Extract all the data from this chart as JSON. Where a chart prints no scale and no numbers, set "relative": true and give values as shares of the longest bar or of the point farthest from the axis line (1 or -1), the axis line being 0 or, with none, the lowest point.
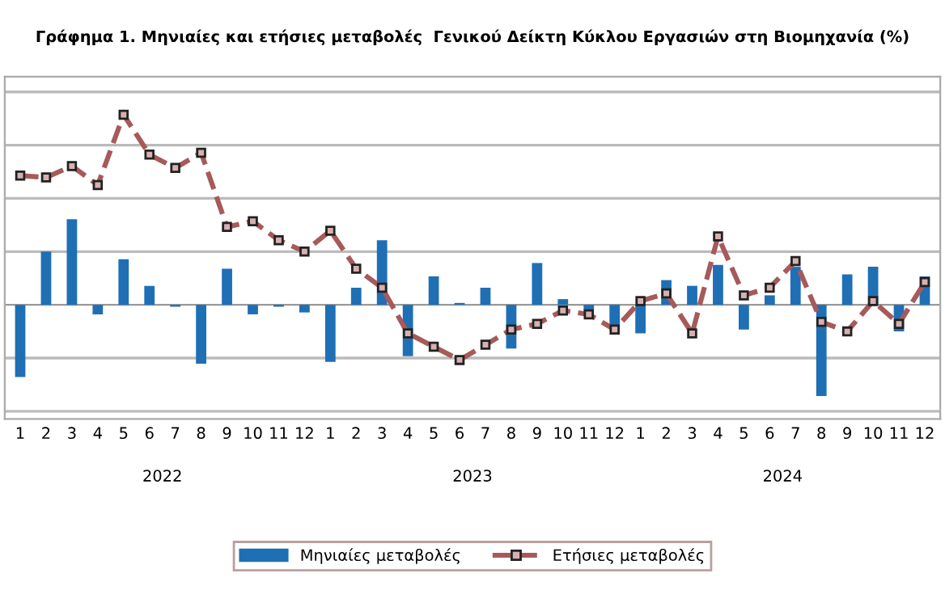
{
  "chart_data": {
    "type": "bar",
    "title": "Γράφημα 1. Μηνιαίες και ετήσιες μεταβολές  Γενικού Δείκτη Κύκλου Εργασιών στη Βιομηχανία (%)",
    "categories": [
      "1",
      "2",
      "3",
      "4",
      "5",
      "6",
      "7",
      "8",
      "9",
      "10",
      "11",
      "12",
      "1",
      "2",
      "3",
      "4",
      "5",
      "6",
      "7",
      "8",
      "9",
      "10",
      "11",
      "12",
      "1",
      "2",
      "3",
      "4",
      "5",
      "6",
      "7",
      "8",
      "9",
      "10",
      "11",
      "12"
    ],
    "relative": true,
    "grid": "y",
    "legend": "bottom",
    "series": [
      {
        "name": "Μηνιαίες μεταβολές",
        "color": "#1f6fb5",
        "values": [
          -0.38,
          0.28,
          0.45,
          -0.05,
          0.24,
          0.1,
          -0.01,
          -0.31,
          0.19,
          -0.05,
          -0.01,
          -0.04,
          -0.3,
          0.09,
          0.34,
          -0.27,
          0.15,
          0.01,
          0.09,
          -0.23,
          0.22,
          0.03,
          -0.03,
          -0.13,
          -0.15,
          0.13,
          0.1,
          0.21,
          -0.13,
          0.05,
          0.2,
          -0.48,
          0.16,
          0.2,
          -0.14,
          0.15
        ]
      },
      {
        "name": "Ετήσιες μεταβολές",
        "type": "line",
        "color": "#a65a5a",
        "marker": "square",
        "line_style": "dashed",
        "values": [
          0.68,
          0.67,
          0.73,
          0.63,
          1.0,
          0.79,
          0.72,
          0.8,
          0.41,
          0.44,
          0.34,
          0.28,
          0.39,
          0.19,
          0.09,
          -0.15,
          -0.22,
          -0.29,
          -0.21,
          -0.13,
          -0.1,
          -0.03,
          -0.05,
          -0.13,
          0.02,
          0.06,
          -0.15,
          0.36,
          0.05,
          0.09,
          0.23,
          -0.09,
          -0.14,
          0.02,
          -0.1,
          0.12
        ]
      }
    ],
    "annotations": [
      "2022",
      "2023",
      "2024"
    ]
  }
}
